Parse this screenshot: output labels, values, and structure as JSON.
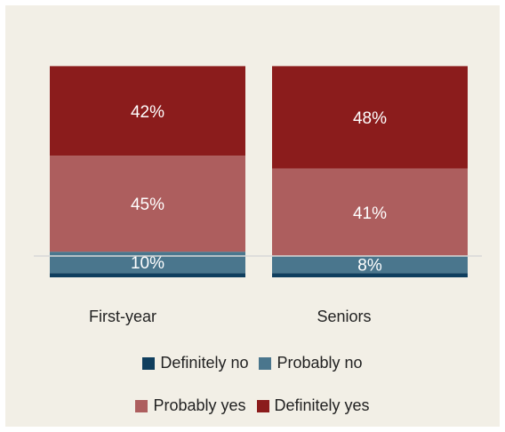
{
  "chart_data": {
    "type": "bar",
    "stacked": true,
    "categories": [
      "First-year",
      "Seniors"
    ],
    "series": [
      {
        "name": "Definitely no",
        "values": [
          2,
          2
        ],
        "color": "#0f3e5e",
        "label": [
          "",
          ""
        ]
      },
      {
        "name": "Probably no",
        "values": [
          10,
          8
        ],
        "color": "#4a768d",
        "label": [
          "10%",
          "8%"
        ]
      },
      {
        "name": "Probably yes",
        "values": [
          45,
          41
        ],
        "color": "#ad5e5e",
        "label": [
          "45%",
          "41%"
        ]
      },
      {
        "name": "Definitely yes",
        "values": [
          42,
          48
        ],
        "color": "#8b1c1c",
        "label": [
          "42%",
          "48%"
        ]
      }
    ],
    "ylim": [
      0,
      100
    ],
    "legend_position": "bottom",
    "grid": false
  }
}
